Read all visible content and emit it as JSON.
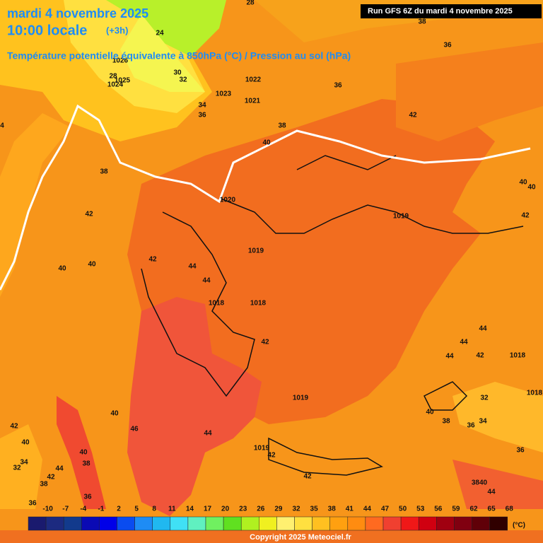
{
  "header": {
    "date": "mardi 4 novembre 2025",
    "time": "10:00 locale",
    "offset": "(+3h)",
    "subtitle": "Température potentielle équivalente à 850hPa (°C) / Pression au sol (hPa)",
    "run": "Run GFS 6Z du mardi 4 novembre 2025"
  },
  "labels": [
    "28",
    "38",
    "36",
    "24",
    "1026",
    "28",
    "1025",
    "1024",
    "30",
    "32",
    "1022",
    "36",
    "1023",
    "1021",
    "34",
    "36",
    "38",
    "42",
    "4",
    "40",
    "38",
    "40",
    "40",
    "1020",
    "1019",
    "42",
    "42",
    "1019",
    "42",
    "40",
    "40",
    "44",
    "44",
    "1018",
    "1018",
    "42",
    "44",
    "44",
    "44",
    "42",
    "1018",
    "1019",
    "1018",
    "32",
    "40",
    "46",
    "40",
    "38",
    "36",
    "34",
    "44",
    "42",
    "40",
    "1019",
    "42",
    "36",
    "40",
    "38",
    "34",
    "32",
    "44",
    "42",
    "38",
    "36",
    "42",
    "3840",
    "44",
    "36",
    "1018"
  ],
  "scale": {
    "ticks": [
      -10,
      -7,
      -4,
      -1,
      2,
      5,
      8,
      11,
      14,
      17,
      20,
      23,
      26,
      29,
      32,
      35,
      38,
      41,
      44,
      47,
      50,
      53,
      56,
      59,
      62,
      65,
      68
    ],
    "colors": [
      "#1a1a6e",
      "#1c2a80",
      "#123a8c",
      "#0a0ab4",
      "#0000e8",
      "#0a4cf0",
      "#1e8cf5",
      "#20b8f0",
      "#40e0f5",
      "#60f0c0",
      "#70f060",
      "#60e020",
      "#b0f020",
      "#f0f020",
      "#fff070",
      "#ffe040",
      "#ffc020",
      "#ffa010",
      "#ff8c10",
      "#ff6a20",
      "#f04030",
      "#f01818",
      "#d00010",
      "#a00010",
      "#800010",
      "#600008",
      "#300000"
    ],
    "unit": "(°C)"
  },
  "footer": {
    "copyright": "Copyright 2025 Meteociel.fr"
  }
}
